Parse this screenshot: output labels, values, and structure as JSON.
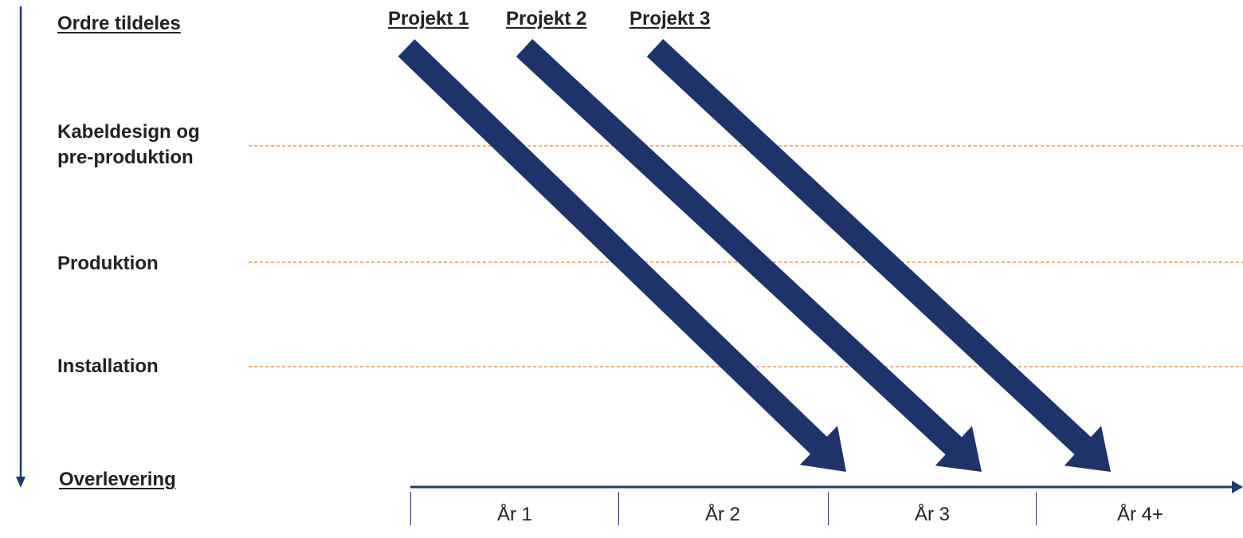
{
  "stages": [
    {
      "id": "ordre",
      "lines": [
        "Ordre tildeles"
      ],
      "underlined": true
    },
    {
      "id": "kabeldesign",
      "lines": [
        "Kabeldesign og",
        "pre-produktion"
      ],
      "underlined": false
    },
    {
      "id": "produktion",
      "lines": [
        "Produktion"
      ],
      "underlined": false
    },
    {
      "id": "installation",
      "lines": [
        "Installation"
      ],
      "underlined": false
    },
    {
      "id": "overlevering",
      "lines": [
        "Overlevering"
      ],
      "underlined": true
    }
  ],
  "projects": [
    {
      "label": "Projekt 1"
    },
    {
      "label": "Projekt 2"
    },
    {
      "label": "Projekt 3"
    }
  ],
  "years": [
    "År 1",
    "År 2",
    "År 3",
    "År 4+"
  ],
  "colors": {
    "arrow": "#1f336b",
    "axis": "#1f3a6e",
    "separator": "#f07d2a",
    "text": "#222222"
  }
}
